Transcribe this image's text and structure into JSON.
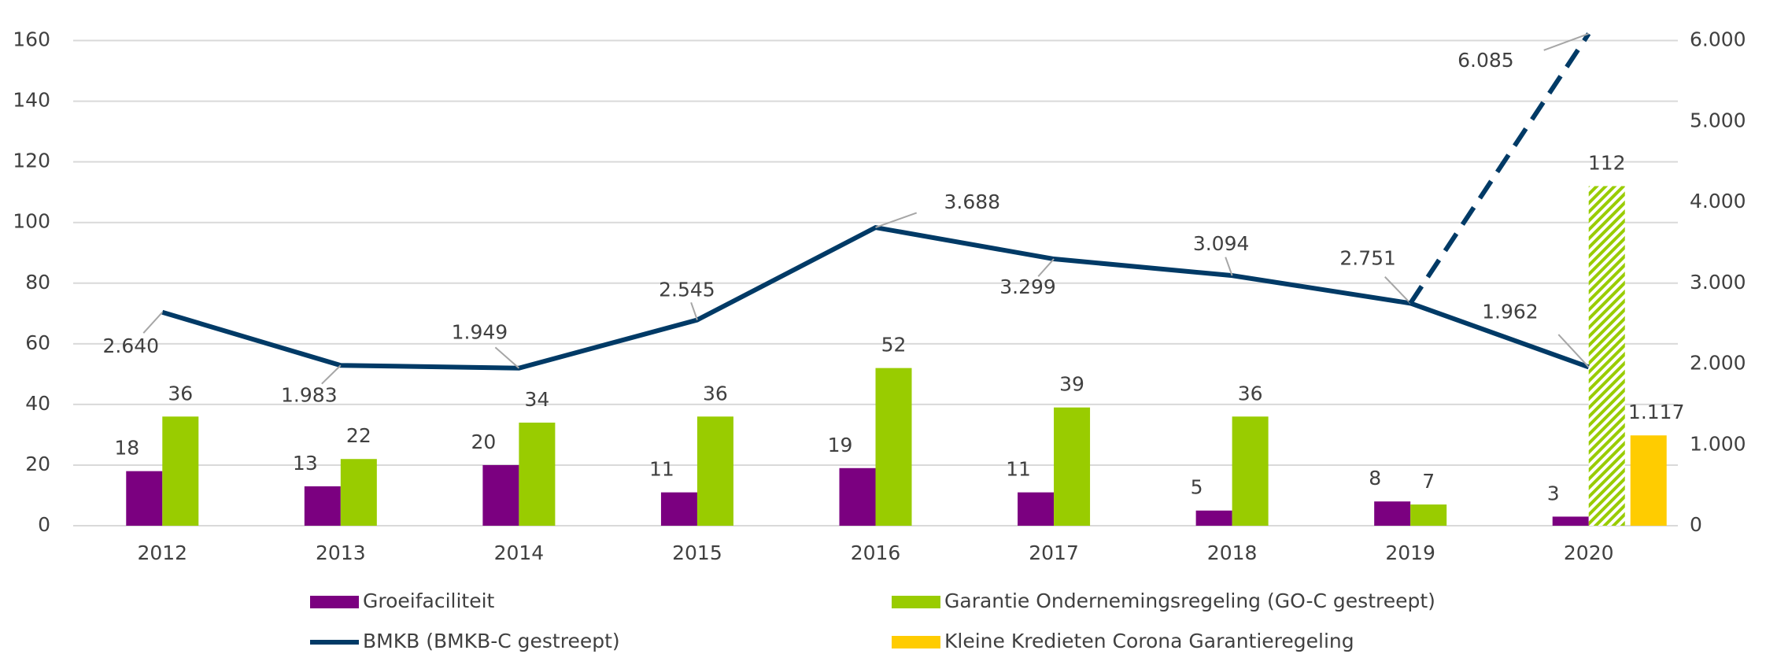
{
  "chart_data": {
    "type": "bar",
    "categories": [
      "2012",
      "2013",
      "2014",
      "2015",
      "2016",
      "2017",
      "2018",
      "2019",
      "2020"
    ],
    "ylim": [
      0,
      170
    ],
    "yticks": [
      0,
      20,
      40,
      60,
      80,
      100,
      120,
      140,
      160
    ],
    "y2lim": [
      0,
      6375
    ],
    "y2ticks": [
      0,
      {
        "value": 1000,
        "label": "1.000"
      },
      {
        "value": 2000,
        "label": "2.000"
      },
      {
        "value": 3000,
        "label": "3.000"
      },
      {
        "value": 4000,
        "label": "4.000"
      },
      {
        "value": 5000,
        "label": "5.000"
      },
      {
        "value": 6000,
        "label": "6.000"
      }
    ],
    "grid": true,
    "series": [
      {
        "name": "Groeifaciliteit",
        "color": "#7b0080",
        "type": "bar",
        "values": [
          18,
          13,
          20,
          11,
          19,
          11,
          5,
          8,
          3
        ]
      },
      {
        "name": "Garantie Ondernemingsregeling (GO-C gestreept)",
        "color": "#99cc00",
        "type": "bar",
        "values": [
          36,
          22,
          34,
          36,
          52,
          39,
          36,
          7,
          null
        ]
      },
      {
        "name": "GO-C",
        "color": "#99cc00",
        "type": "hatched-bar",
        "values": [
          null,
          null,
          null,
          null,
          null,
          null,
          null,
          null,
          112
        ]
      },
      {
        "name": "Kleine Kredieten Corona Garantieregeling",
        "color": "#ffcc00",
        "type": "bar",
        "axis": "y2",
        "values": [
          null,
          null,
          null,
          null,
          null,
          null,
          null,
          null,
          1117
        ],
        "value_labels": [
          null,
          null,
          null,
          null,
          null,
          null,
          null,
          null,
          "1.117"
        ]
      },
      {
        "name": "BMKB (BMKB-C gestreept)",
        "color": "#003a66",
        "type": "line",
        "axis": "y2",
        "values": [
          2640,
          1983,
          1949,
          2545,
          3688,
          3299,
          3094,
          2751,
          1962
        ],
        "value_labels": [
          "2.640",
          "1.983",
          "1.949",
          "2.545",
          "3.688",
          "3.299",
          "3.094",
          "2.751",
          "1.962"
        ]
      },
      {
        "name": "BMKB-C",
        "color": "#003a66",
        "type": "dashed-line",
        "axis": "y2",
        "values": [
          null,
          null,
          null,
          null,
          null,
          null,
          null,
          2751,
          6085
        ],
        "value_labels": [
          null,
          null,
          null,
          null,
          null,
          null,
          null,
          null,
          "6.085"
        ]
      }
    ],
    "legend": [
      "Groeifaciliteit",
      "Garantie Ondernemingsregeling (GO-C gestreept)",
      "BMKB (BMKB-C gestreept)",
      "Kleine Kredieten Corona Garantieregeling"
    ]
  }
}
